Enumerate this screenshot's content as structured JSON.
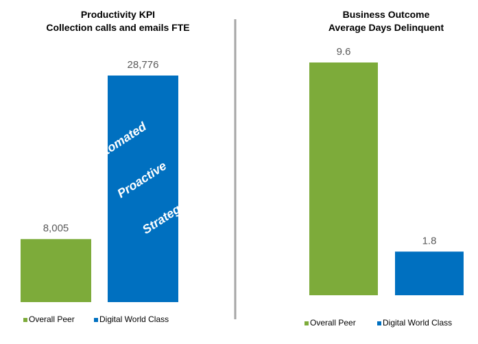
{
  "colors": {
    "green": "#7dab3a",
    "blue": "#0070c0",
    "divider": "#a6a6a6",
    "label": "#595959"
  },
  "chart_data": [
    {
      "type": "bar",
      "title": "Productivity KPI",
      "subtitle": "Collection calls and emails FTE",
      "categories": [
        "Overall Peer",
        "Digital World Class"
      ],
      "values": [
        8005,
        28776
      ],
      "data_labels": [
        "8,005",
        "28,776"
      ],
      "ylim": [
        0,
        28776
      ],
      "legend": [
        "Overall Peer",
        "Digital World Class"
      ],
      "legend_position": "bottom-left",
      "annotations": [
        "Automated",
        "Proactive",
        "Strategic"
      ]
    },
    {
      "type": "bar",
      "title": "Business Outcome",
      "subtitle": "Average Days Delinquent",
      "categories": [
        "Overall Peer",
        "Digital World Class"
      ],
      "values": [
        9.6,
        1.8
      ],
      "data_labels": [
        "9.6",
        "1.8"
      ],
      "ylim": [
        0,
        9.6
      ],
      "legend": [
        "Overall Peer",
        "Digital World Class"
      ],
      "legend_position": "bottom-right"
    }
  ]
}
